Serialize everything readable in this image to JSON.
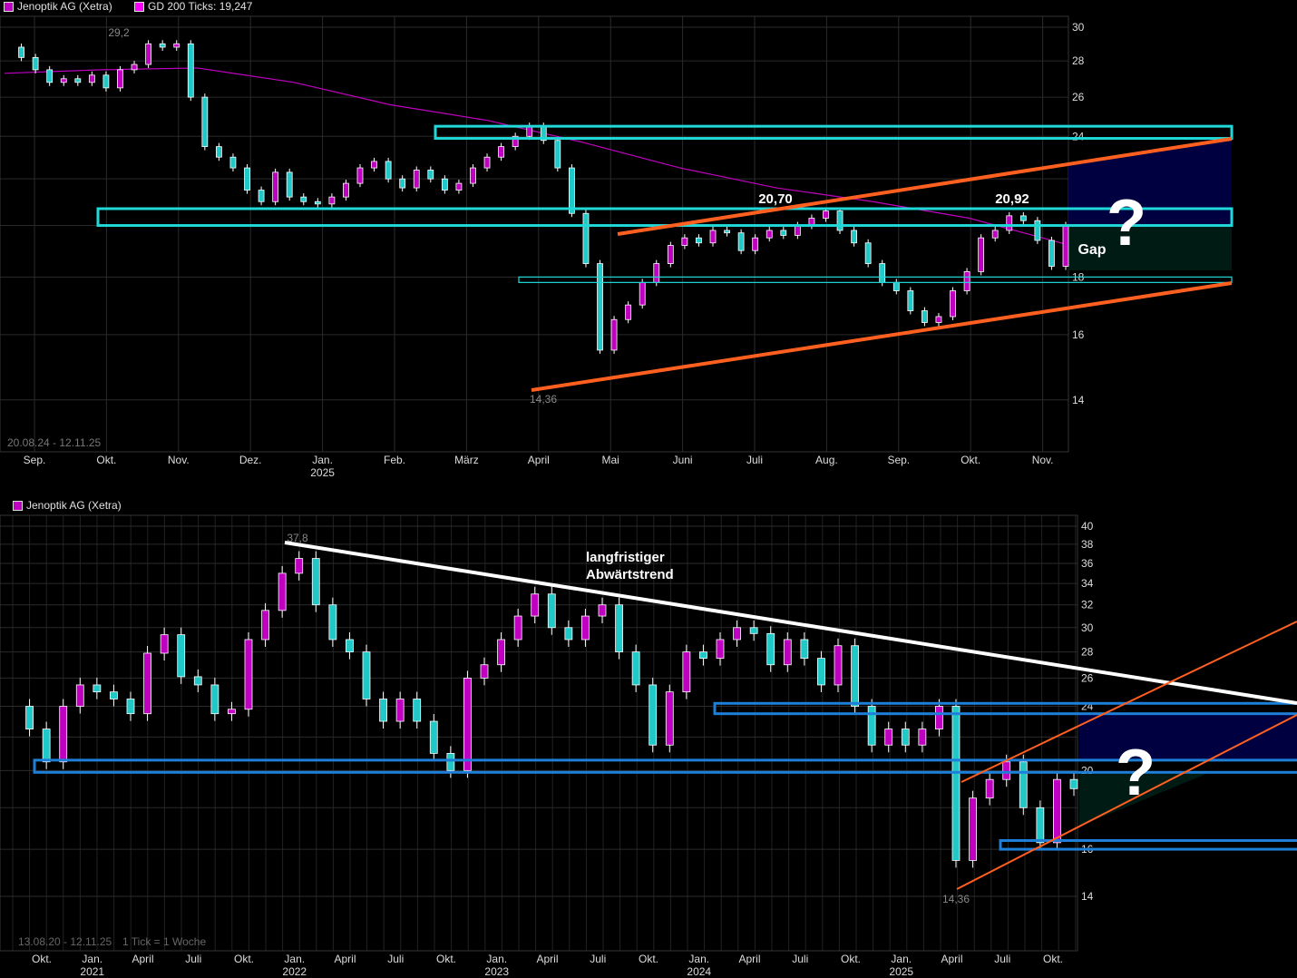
{
  "legend_top": {
    "series": "Jenoptik AG (Xetra)",
    "ma": "GD 200 Ticks: 19,247",
    "series_color": "#c000c0",
    "ma_color": "#ff00ff"
  },
  "legend_bottom": {
    "series": "Jenoptik AG (Xetra)",
    "series_color": "#c000c0"
  },
  "colors": {
    "up": "#c000c0",
    "down": "#20c8c8",
    "ma": "#c000c0",
    "zone_top": "#20d8d8",
    "zone_bottom": "#1e7fd8",
    "trend": "#ff6020",
    "downtrend": "#ffffff",
    "fill_upper": "#000040",
    "fill_lower": "#001a14",
    "grid": "#2b2b2b"
  },
  "chart_data": [
    {
      "type": "candlestick",
      "period": "20.08.24 - 12.11.25",
      "scale": "log",
      "ylim": [
        13.2,
        30.5
      ],
      "yticks": [
        14,
        16,
        18,
        20,
        22,
        24,
        26,
        28,
        30
      ],
      "xticks": [
        {
          "label": "Sep.",
          "year": ""
        },
        {
          "label": "Okt.",
          "year": ""
        },
        {
          "label": "Nov.",
          "year": ""
        },
        {
          "label": "Dez.",
          "year": ""
        },
        {
          "label": "Jan.",
          "year": "2025"
        },
        {
          "label": "Feb.",
          "year": ""
        },
        {
          "label": "März",
          "year": ""
        },
        {
          "label": "April",
          "year": ""
        },
        {
          "label": "Mai",
          "year": ""
        },
        {
          "label": "Juni",
          "year": ""
        },
        {
          "label": "Juli",
          "year": ""
        },
        {
          "label": "Aug.",
          "year": ""
        },
        {
          "label": "Sep.",
          "year": ""
        },
        {
          "label": "Okt.",
          "year": ""
        },
        {
          "label": "Nov.",
          "year": ""
        }
      ],
      "closes": [
        28.8,
        28.2,
        27.5,
        26.8,
        27.0,
        26.8,
        27.2,
        26.5,
        27.5,
        27.8,
        29.0,
        28.8,
        29.0,
        26.0,
        23.5,
        23.0,
        22.5,
        21.5,
        21.0,
        22.3,
        21.2,
        21.0,
        20.9,
        21.2,
        21.8,
        22.5,
        22.8,
        22.0,
        21.6,
        22.4,
        22.0,
        21.5,
        21.8,
        22.5,
        23.0,
        23.5,
        24.0,
        24.5,
        23.8,
        22.5,
        20.5,
        18.5,
        15.5,
        16.5,
        17.0,
        17.8,
        18.5,
        19.2,
        19.5,
        19.3,
        19.8,
        19.7,
        19.0,
        19.5,
        19.8,
        19.6,
        20.0,
        20.3,
        20.6,
        19.8,
        19.3,
        18.5,
        17.8,
        17.5,
        16.8,
        16.4,
        16.6,
        17.5,
        18.2,
        19.5,
        19.8,
        20.4,
        20.2,
        19.4,
        18.4,
        20.0
      ],
      "ma200": [
        27.3,
        27.5,
        27.6,
        26.8,
        25.6,
        24.8,
        23.7,
        22.5,
        21.6,
        21.0,
        20.3,
        19.25
      ],
      "ma200_last": "19,247",
      "zones": [
        [
          23.9,
          24.5
        ],
        [
          20.0,
          20.7
        ],
        [
          17.8,
          18.0
        ]
      ],
      "annotations": {
        "high": "29,2",
        "peak1": "20,70",
        "peak2": "20,92",
        "low": "14,36",
        "gap": "Gap",
        "question": "?"
      }
    },
    {
      "type": "candlestick",
      "period": "13.08.20 - 12.11.25",
      "tick_note": "1 Tick = 1 Woche",
      "scale": "log",
      "ylim": [
        12.8,
        41
      ],
      "yticks": [
        14,
        16,
        18,
        20,
        22,
        24,
        26,
        28,
        30,
        32,
        34,
        36,
        38,
        40
      ],
      "xticks": [
        {
          "label": "Okt.",
          "year": ""
        },
        {
          "label": "Jan.",
          "year": "2021"
        },
        {
          "label": "April",
          "year": ""
        },
        {
          "label": "Juli",
          "year": ""
        },
        {
          "label": "Okt.",
          "year": ""
        },
        {
          "label": "Jan.",
          "year": "2022"
        },
        {
          "label": "April",
          "year": ""
        },
        {
          "label": "Juli",
          "year": ""
        },
        {
          "label": "Okt.",
          "year": ""
        },
        {
          "label": "Jan.",
          "year": "2023"
        },
        {
          "label": "April",
          "year": ""
        },
        {
          "label": "Juli",
          "year": ""
        },
        {
          "label": "Okt.",
          "year": ""
        },
        {
          "label": "Jan.",
          "year": "2024"
        },
        {
          "label": "April",
          "year": ""
        },
        {
          "label": "Juli",
          "year": ""
        },
        {
          "label": "Okt.",
          "year": ""
        },
        {
          "label": "Jan.",
          "year": "2025"
        },
        {
          "label": "April",
          "year": ""
        },
        {
          "label": "Juli",
          "year": ""
        },
        {
          "label": "Okt.",
          "year": ""
        }
      ],
      "closes": [
        24,
        22.5,
        20.5,
        24,
        25.5,
        25,
        24.5,
        23.5,
        27.9,
        29.4,
        26.1,
        25.5,
        23.5,
        23.8,
        29,
        31.5,
        35,
        36.5,
        32,
        29,
        28,
        24.5,
        23,
        24.5,
        23,
        21,
        20,
        26,
        27,
        29,
        31,
        33,
        30,
        29,
        31,
        32,
        28,
        25.5,
        21.5,
        25,
        28,
        27.5,
        29,
        30,
        29.5,
        27,
        29,
        27.5,
        25.5,
        28.5,
        24,
        21.5,
        22.5,
        21.5,
        22.5,
        24,
        15.5,
        18.5,
        19.5,
        20.5,
        18,
        16.3,
        19.5,
        19
      ],
      "zones": [
        [
          23.5,
          24.2
        ],
        [
          19.9,
          20.6
        ],
        [
          16.0,
          16.4
        ]
      ],
      "annotations": {
        "high": "37,8",
        "low": "14,36",
        "trend_label_1": "langfristiger",
        "trend_label_2": "Abwärtstrend",
        "question": "?"
      }
    }
  ]
}
